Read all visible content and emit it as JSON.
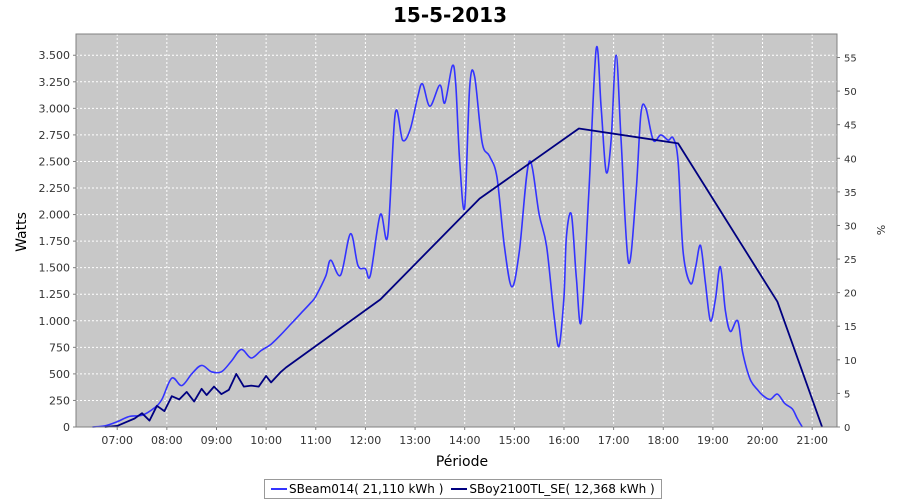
{
  "chart_data": {
    "type": "line",
    "title": "15-5-2013",
    "xlabel": "Période",
    "ylabel": "Watts",
    "y2label": "%",
    "xlim": [
      6.17,
      21.5
    ],
    "ylim": [
      0,
      3700
    ],
    "y2lim": [
      0,
      58.5
    ],
    "grid": true,
    "legend_position": "bottom",
    "x_ticks": [
      7,
      8,
      9,
      10,
      11,
      12,
      13,
      14,
      15,
      16,
      17,
      18,
      19,
      20,
      21
    ],
    "x_tick_labels": [
      "07:00",
      "08:00",
      "09:00",
      "10:00",
      "11:00",
      "12:00",
      "13:00",
      "14:00",
      "15:00",
      "16:00",
      "17:00",
      "18:00",
      "19:00",
      "20:00",
      "21:00"
    ],
    "y_ticks": [
      0,
      250,
      500,
      750,
      1000,
      1250,
      1500,
      1750,
      2000,
      2250,
      2500,
      2750,
      3000,
      3250,
      3500
    ],
    "y_tick_labels": [
      "0",
      "250",
      "500",
      "750",
      "1.000",
      "1.250",
      "1.500",
      "1.750",
      "2.000",
      "2.250",
      "2.500",
      "2.750",
      "3.000",
      "3.250",
      "3.500"
    ],
    "y2_ticks": [
      0,
      5,
      10,
      15,
      20,
      25,
      30,
      35,
      40,
      45,
      50,
      55
    ],
    "y2_tick_labels": [
      "0",
      "5",
      "10",
      "15",
      "20",
      "25",
      "30",
      "35",
      "40",
      "45",
      "50",
      "55"
    ],
    "series": [
      {
        "name": "SBeam014( 21,110 kWh )",
        "color": "#3333ff",
        "points": [
          [
            6.5,
            0
          ],
          [
            6.75,
            10
          ],
          [
            7.0,
            50
          ],
          [
            7.25,
            100
          ],
          [
            7.5,
            110
          ],
          [
            7.75,
            180
          ],
          [
            7.9,
            260
          ],
          [
            8.1,
            460
          ],
          [
            8.3,
            390
          ],
          [
            8.5,
            500
          ],
          [
            8.7,
            580
          ],
          [
            8.9,
            520
          ],
          [
            9.1,
            520
          ],
          [
            9.3,
            620
          ],
          [
            9.5,
            730
          ],
          [
            9.7,
            650
          ],
          [
            9.9,
            720
          ],
          [
            10.1,
            780
          ],
          [
            10.3,
            870
          ],
          [
            10.5,
            970
          ],
          [
            10.7,
            1070
          ],
          [
            10.9,
            1170
          ],
          [
            11.0,
            1230
          ],
          [
            11.2,
            1420
          ],
          [
            11.3,
            1570
          ],
          [
            11.5,
            1430
          ],
          [
            11.7,
            1820
          ],
          [
            11.85,
            1520
          ],
          [
            12.0,
            1490
          ],
          [
            12.1,
            1430
          ],
          [
            12.3,
            2000
          ],
          [
            12.45,
            1800
          ],
          [
            12.6,
            2950
          ],
          [
            12.75,
            2700
          ],
          [
            12.9,
            2800
          ],
          [
            13.05,
            3100
          ],
          [
            13.15,
            3230
          ],
          [
            13.3,
            3020
          ],
          [
            13.5,
            3220
          ],
          [
            13.6,
            3050
          ],
          [
            13.75,
            3400
          ],
          [
            13.82,
            3220
          ],
          [
            13.9,
            2500
          ],
          [
            14.0,
            2070
          ],
          [
            14.1,
            3200
          ],
          [
            14.2,
            3300
          ],
          [
            14.35,
            2680
          ],
          [
            14.5,
            2550
          ],
          [
            14.65,
            2350
          ],
          [
            14.8,
            1700
          ],
          [
            14.95,
            1320
          ],
          [
            15.1,
            1650
          ],
          [
            15.3,
            2500
          ],
          [
            15.5,
            2000
          ],
          [
            15.65,
            1700
          ],
          [
            15.8,
            1050
          ],
          [
            15.9,
            760
          ],
          [
            16.0,
            1230
          ],
          [
            16.05,
            1800
          ],
          [
            16.15,
            2000
          ],
          [
            16.25,
            1400
          ],
          [
            16.35,
            1000
          ],
          [
            16.5,
            2200
          ],
          [
            16.65,
            3560
          ],
          [
            16.75,
            3000
          ],
          [
            16.85,
            2400
          ],
          [
            16.95,
            2700
          ],
          [
            17.05,
            3500
          ],
          [
            17.15,
            2700
          ],
          [
            17.3,
            1550
          ],
          [
            17.45,
            2200
          ],
          [
            17.55,
            2950
          ],
          [
            17.65,
            3000
          ],
          [
            17.8,
            2700
          ],
          [
            17.95,
            2750
          ],
          [
            18.1,
            2700
          ],
          [
            18.2,
            2720
          ],
          [
            18.3,
            2500
          ],
          [
            18.4,
            1650
          ],
          [
            18.55,
            1350
          ],
          [
            18.65,
            1500
          ],
          [
            18.75,
            1710
          ],
          [
            18.85,
            1350
          ],
          [
            18.95,
            1000
          ],
          [
            19.05,
            1200
          ],
          [
            19.15,
            1510
          ],
          [
            19.25,
            1100
          ],
          [
            19.35,
            900
          ],
          [
            19.5,
            1000
          ],
          [
            19.6,
            700
          ],
          [
            19.75,
            450
          ],
          [
            19.9,
            350
          ],
          [
            20.0,
            300
          ],
          [
            20.15,
            260
          ],
          [
            20.3,
            310
          ],
          [
            20.45,
            220
          ],
          [
            20.6,
            170
          ],
          [
            20.7,
            80
          ],
          [
            20.8,
            0
          ]
        ]
      },
      {
        "name": "SBoy2100TL_SE( 12,368 kWh )",
        "color": "#000080",
        "points": [
          [
            6.75,
            0
          ],
          [
            7.0,
            10
          ],
          [
            7.2,
            50
          ],
          [
            7.35,
            80
          ],
          [
            7.5,
            130
          ],
          [
            7.65,
            60
          ],
          [
            7.8,
            200
          ],
          [
            7.95,
            150
          ],
          [
            8.1,
            290
          ],
          [
            8.25,
            260
          ],
          [
            8.4,
            330
          ],
          [
            8.55,
            240
          ],
          [
            8.7,
            360
          ],
          [
            8.8,
            300
          ],
          [
            8.95,
            380
          ],
          [
            9.1,
            310
          ],
          [
            9.25,
            350
          ],
          [
            9.4,
            500
          ],
          [
            9.55,
            380
          ],
          [
            9.7,
            390
          ],
          [
            9.85,
            380
          ],
          [
            10.0,
            480
          ],
          [
            10.1,
            420
          ],
          [
            10.3,
            520
          ],
          [
            10.4,
            560
          ],
          [
            12.3,
            1200
          ],
          [
            14.3,
            2150
          ],
          [
            16.3,
            2810
          ],
          [
            18.3,
            2670
          ],
          [
            20.3,
            1180
          ],
          [
            21.2,
            0
          ]
        ]
      }
    ]
  }
}
